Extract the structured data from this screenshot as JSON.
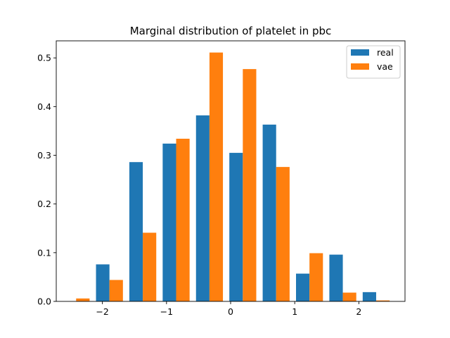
{
  "chart_data": {
    "type": "bar",
    "title": "Marginal distribution of platelet in pbc",
    "xlabel": "",
    "ylabel": "",
    "xlim": [
      -2.72,
      2.72
    ],
    "ylim": [
      0,
      0.535
    ],
    "xticks": [
      {
        "value": -2,
        "label": "−2"
      },
      {
        "value": -1,
        "label": "−1"
      },
      {
        "value": 0,
        "label": "0"
      },
      {
        "value": 1,
        "label": "1"
      },
      {
        "value": 2,
        "label": "2"
      }
    ],
    "yticks": [
      {
        "value": 0.0,
        "label": "0.0"
      },
      {
        "value": 0.1,
        "label": "0.1"
      },
      {
        "value": 0.2,
        "label": "0.2"
      },
      {
        "value": 0.3,
        "label": "0.3"
      },
      {
        "value": 0.4,
        "label": "0.4"
      },
      {
        "value": 0.5,
        "label": "0.5"
      }
    ],
    "bin_centers": [
      -2.41,
      -1.89,
      -1.37,
      -0.85,
      -0.33,
      0.19,
      0.71,
      1.23,
      1.75,
      2.27
    ],
    "bar_width": 0.21,
    "series": [
      {
        "name": "real",
        "color": "#1f77b4",
        "offset": 0,
        "values": [
          0.0,
          0.076,
          0.286,
          0.324,
          0.382,
          0.305,
          0.363,
          0.057,
          0.096,
          0.019
        ]
      },
      {
        "name": "vae",
        "color": "#ff7f0e",
        "offset": 1,
        "values": [
          0.006,
          0.044,
          0.141,
          0.334,
          0.511,
          0.477,
          0.276,
          0.099,
          0.018,
          0.002
        ]
      }
    ],
    "legend": {
      "position": "top-right"
    },
    "grid": false
  }
}
